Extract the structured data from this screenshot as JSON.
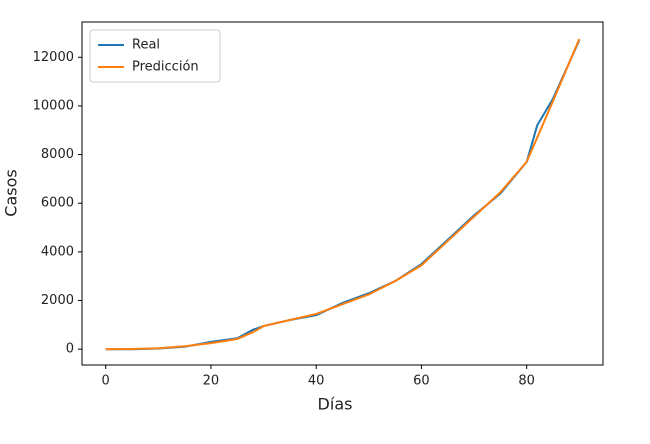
{
  "chart_data": {
    "type": "line",
    "xlabel": "Días",
    "ylabel": "Casos",
    "x": [
      0,
      5,
      10,
      15,
      20,
      25,
      28,
      30,
      35,
      40,
      45,
      50,
      55,
      60,
      65,
      70,
      75,
      80,
      82,
      85,
      90
    ],
    "series": [
      {
        "name": "Real",
        "color": "#1f77b4",
        "values": [
          0,
          0,
          30,
          100,
          300,
          450,
          800,
          950,
          1200,
          1400,
          1900,
          2300,
          2800,
          3500,
          4500,
          5500,
          6400,
          7700,
          9200,
          10300,
          12700
        ]
      },
      {
        "name": "Predicción",
        "color": "#ff7f0e",
        "values": [
          0,
          10,
          40,
          120,
          250,
          420,
          700,
          950,
          1200,
          1450,
          1850,
          2250,
          2800,
          3450,
          4450,
          5450,
          6450,
          7700,
          8700,
          10200,
          12750
        ]
      }
    ],
    "xlim": [
      -4.5,
      94.5
    ],
    "xticks": [
      0,
      20,
      40,
      60,
      80
    ],
    "ylim": [
      -650,
      13450
    ],
    "yticks": [
      0,
      2000,
      4000,
      6000,
      8000,
      10000,
      12000
    ],
    "grid": false,
    "legend": "upper-left"
  }
}
